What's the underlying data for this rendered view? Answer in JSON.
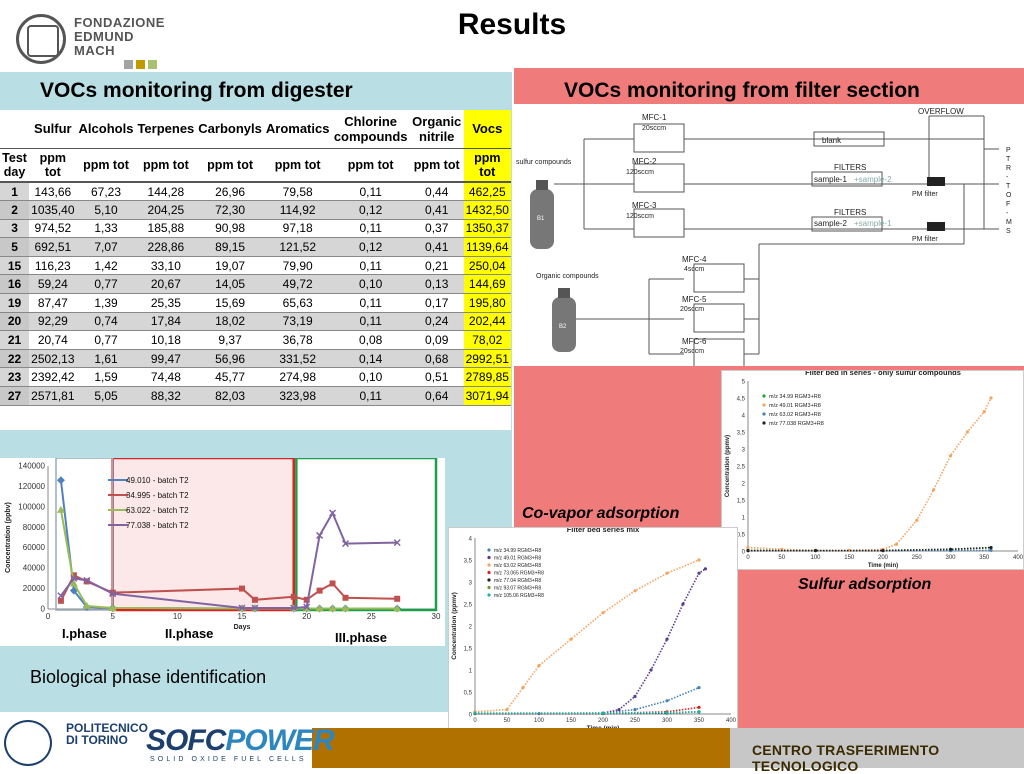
{
  "title": "Results",
  "logo": {
    "line1": "FONDAZIONE",
    "line2": "EDMUND",
    "line3": "MACH",
    "squares": [
      "#a3a3a3",
      "#c29a00",
      "#a8c070"
    ]
  },
  "left_title": "VOCs monitoring from digester",
  "right_title": "VOCs monitoring from filter section",
  "table": {
    "header1": [
      "",
      "Sulfur",
      "Alcohols",
      "Terpenes",
      "Carbonyls",
      "Aromatics",
      "Chlorine compounds",
      "Organic nitrile",
      "Vocs"
    ],
    "header2": [
      "Test day",
      "ppm tot",
      "ppm tot",
      "ppm tot",
      "ppm tot",
      "ppm tot",
      "ppm tot",
      "ppm tot",
      "ppm tot"
    ],
    "rows": [
      [
        "1",
        "143,66",
        "67,23",
        "144,28",
        "26,96",
        "79,58",
        "0,11",
        "0,44",
        "462,25"
      ],
      [
        "2",
        "1035,40",
        "5,10",
        "204,25",
        "72,30",
        "114,92",
        "0,12",
        "0,41",
        "1432,50"
      ],
      [
        "3",
        "974,52",
        "1,33",
        "185,88",
        "90,98",
        "97,18",
        "0,11",
        "0,37",
        "1350,37"
      ],
      [
        "5",
        "692,51",
        "7,07",
        "228,86",
        "89,15",
        "121,52",
        "0,12",
        "0,41",
        "1139,64"
      ],
      [
        "15",
        "116,23",
        "1,42",
        "33,10",
        "19,07",
        "79,90",
        "0,11",
        "0,21",
        "250,04"
      ],
      [
        "16",
        "59,24",
        "0,77",
        "20,67",
        "14,05",
        "49,72",
        "0,10",
        "0,13",
        "144,69"
      ],
      [
        "19",
        "87,47",
        "1,39",
        "25,35",
        "15,69",
        "65,63",
        "0,11",
        "0,17",
        "195,80"
      ],
      [
        "20",
        "92,29",
        "0,74",
        "17,84",
        "18,02",
        "73,19",
        "0,11",
        "0,24",
        "202,44"
      ],
      [
        "21",
        "20,74",
        "0,77",
        "10,18",
        "9,37",
        "36,78",
        "0,08",
        "0,09",
        "78,02"
      ],
      [
        "22",
        "2502,13",
        "1,61",
        "99,47",
        "56,96",
        "331,52",
        "0,14",
        "0,68",
        "2992,51"
      ],
      [
        "23",
        "2392,42",
        "1,59",
        "74,48",
        "45,77",
        "274,98",
        "0,10",
        "0,51",
        "2789,85"
      ],
      [
        "27",
        "2571,81",
        "5,05",
        "88,32",
        "82,03",
        "323,98",
        "0,11",
        "0,64",
        "3071,94"
      ]
    ]
  },
  "bio": {
    "phase1": "I.phase",
    "phase2": "II.phase",
    "phase3": "III.phase",
    "caption": "Biological phase identification"
  },
  "diagram": {
    "mfc1": "MFC-1",
    "mfc1_flow": "20sccm",
    "mfc2": "MFC-2",
    "mfc2_flow": "120sccm",
    "mfc3": "MFC-3",
    "mfc3_flow": "120sccm",
    "mfc4": "MFC-4",
    "mfc4_flow": "4sccm",
    "mfc5": "MFC-5",
    "mfc5_flow": "20sccm",
    "mfc6": "MFC-6",
    "mfc6_flow": "20sccm",
    "overflow": "OVERFLOW",
    "blank": "blank",
    "filters": "FILTERS",
    "sample1": "sample-1",
    "plus_sample2": "+sample-2",
    "sample2": "sample-2",
    "plus_sample1": "+sample-1",
    "pm_filter": "PM filter",
    "sulfur": "sulfur compounds",
    "organic": "Organic compounds",
    "b1": "B1",
    "b2": "B2",
    "ptr": [
      "P",
      "T",
      "R",
      "-",
      "T",
      "O",
      "F",
      "-",
      "M",
      "S"
    ]
  },
  "captions": {
    "covapor": "Co-vapor adsorption",
    "sulfur": "Sulfur adsorption"
  },
  "footer": {
    "text": "CENTRO TRASFERIMENTO TECNOLOGICO",
    "polito_line1": "POLITECNICO",
    "polito_line2": "DI TORINO",
    "sofc": "SOFC",
    "power": "POWER",
    "sofc_sub": "SOLID OXIDE FUEL CELLS"
  },
  "chart_data": [
    {
      "type": "line",
      "title": "",
      "xlabel": "Days",
      "ylabel": "Concentration (ppbv)",
      "xlim": [
        0,
        30
      ],
      "ylim": [
        0,
        140000
      ],
      "xticks": [
        "0",
        "5",
        "10",
        "15",
        "20",
        "25",
        "30"
      ],
      "yticks": [
        "0",
        "20000",
        "40000",
        "60000",
        "80000",
        "100000",
        "120000",
        "140000"
      ],
      "legend": "top-left",
      "series": [
        {
          "name": "49.010 - batch T2",
          "color": "#4f81bd",
          "x": [
            1,
            2,
            3,
            5,
            15,
            16,
            19,
            20,
            21,
            22,
            23,
            27
          ],
          "y": [
            126000,
            18000,
            2000,
            1000,
            500,
            500,
            500,
            500,
            500,
            500,
            500,
            500
          ]
        },
        {
          "name": "34.995 - batch T2",
          "color": "#c0504d",
          "x": [
            1,
            2,
            3,
            5,
            15,
            16,
            19,
            20,
            21,
            22,
            23,
            27
          ],
          "y": [
            8000,
            33000,
            27000,
            16000,
            20000,
            9000,
            12000,
            9000,
            18000,
            25000,
            11000,
            10000
          ]
        },
        {
          "name": "63.022 - batch T2",
          "color": "#9bbb59",
          "x": [
            1,
            2,
            3,
            5,
            15,
            16,
            19,
            20,
            21,
            22,
            23,
            27
          ],
          "y": [
            97000,
            25000,
            3000,
            1000,
            500,
            500,
            500,
            500,
            500,
            500,
            500,
            500
          ]
        },
        {
          "name": "77.038 - batch T2",
          "color": "#8064a2",
          "x": [
            1,
            2,
            3,
            5,
            15,
            16,
            19,
            20,
            21,
            22,
            23,
            27
          ],
          "y": [
            13000,
            30000,
            28000,
            15000,
            1000,
            1000,
            1000,
            2000,
            72000,
            94000,
            64000,
            65000
          ]
        }
      ]
    },
    {
      "type": "scatter",
      "title": "Filter bed in series - only sulfur compounds",
      "xlabel": "Time (min)",
      "ylabel": "Concentration (ppmv)",
      "xlim": [
        0,
        400
      ],
      "ylim": [
        0,
        5
      ],
      "xticks": [
        "0",
        "50",
        "100",
        "150",
        "200",
        "250",
        "300",
        "350",
        "400"
      ],
      "yticks": [
        "0",
        "0,5",
        "1",
        "1,5",
        "2",
        "2,5",
        "3",
        "3,5",
        "4",
        "4,5",
        "5"
      ],
      "legend": "top-left",
      "series": [
        {
          "name": "m/z 34.99 RGM3+R8",
          "color": "#2ca02c",
          "x": [
            0,
            100,
            200,
            300,
            360
          ],
          "y": [
            0.02,
            0.02,
            0.02,
            0.05,
            0.1
          ]
        },
        {
          "name": "m/z 49.01 RGM3+R8",
          "color": "#f4a460",
          "x": [
            0,
            50,
            100,
            150,
            200,
            220,
            250,
            275,
            300,
            325,
            350,
            360
          ],
          "y": [
            0.1,
            0.05,
            0.02,
            0.02,
            0.05,
            0.2,
            0.9,
            1.8,
            2.8,
            3.5,
            4.1,
            4.5
          ]
        },
        {
          "name": "m/z 63.02 RGM3+R8",
          "color": "#4682b4",
          "x": [
            0,
            100,
            200,
            300,
            360
          ],
          "y": [
            0.01,
            0.01,
            0.01,
            0.01,
            0.02
          ]
        },
        {
          "name": "m/z 77.038 RGM3+R8",
          "color": "#222222",
          "x": [
            0,
            100,
            200,
            300,
            360
          ],
          "y": [
            0.01,
            0.01,
            0.01,
            0.05,
            0.1
          ]
        }
      ]
    },
    {
      "type": "scatter",
      "title": "Filter bed series mix",
      "xlabel": "Time (min)",
      "ylabel": "Concentration (ppmv)",
      "xlim": [
        0,
        400
      ],
      "ylim": [
        0,
        4
      ],
      "xticks": [
        "0",
        "50",
        "100",
        "150",
        "200",
        "250",
        "300",
        "350",
        "400"
      ],
      "yticks": [
        "0",
        "0,5",
        "1",
        "1,5",
        "2",
        "2,5",
        "3",
        "3,5",
        "4"
      ],
      "legend": "top-left",
      "series": [
        {
          "name": "m/z 34.99 RGM3+R8",
          "color": "#4682b4",
          "x": [
            0,
            100,
            200,
            250,
            300,
            350
          ],
          "y": [
            0.01,
            0.01,
            0.02,
            0.1,
            0.3,
            0.6
          ]
        },
        {
          "name": "m/z 49.01 RGM3+R8",
          "color": "#5b3a8e",
          "x": [
            0,
            200,
            225,
            250,
            275,
            300,
            325,
            350,
            360
          ],
          "y": [
            0.01,
            0.02,
            0.1,
            0.4,
            1.0,
            1.7,
            2.5,
            3.2,
            3.3
          ]
        },
        {
          "name": "m/z 63.02 RGM3+R8",
          "color": "#f4a460",
          "x": [
            0,
            50,
            75,
            100,
            150,
            200,
            250,
            300,
            350
          ],
          "y": [
            0.05,
            0.1,
            0.6,
            1.1,
            1.7,
            2.3,
            2.8,
            3.2,
            3.5
          ]
        },
        {
          "name": "m/z 73.065 RGM3+R8",
          "color": "#d62728",
          "x": [
            0,
            200,
            300,
            350
          ],
          "y": [
            0.01,
            0.01,
            0.05,
            0.15
          ]
        },
        {
          "name": "m/z 77.04 RGM3+R8",
          "color": "#222222",
          "x": [
            0,
            200,
            300,
            350
          ],
          "y": [
            0.01,
            0.01,
            0.02,
            0.05
          ]
        },
        {
          "name": "m/z 93.07 RGM3+R8",
          "color": "#6a9a3a",
          "x": [
            0,
            200,
            300,
            350
          ],
          "y": [
            0.02,
            0.02,
            0.03,
            0.05
          ]
        },
        {
          "name": "m/z 105.06 RGM3+R8",
          "color": "#20b2aa",
          "x": [
            0,
            200,
            300,
            350
          ],
          "y": [
            0.02,
            0.02,
            0.03,
            0.05
          ]
        }
      ]
    }
  ]
}
